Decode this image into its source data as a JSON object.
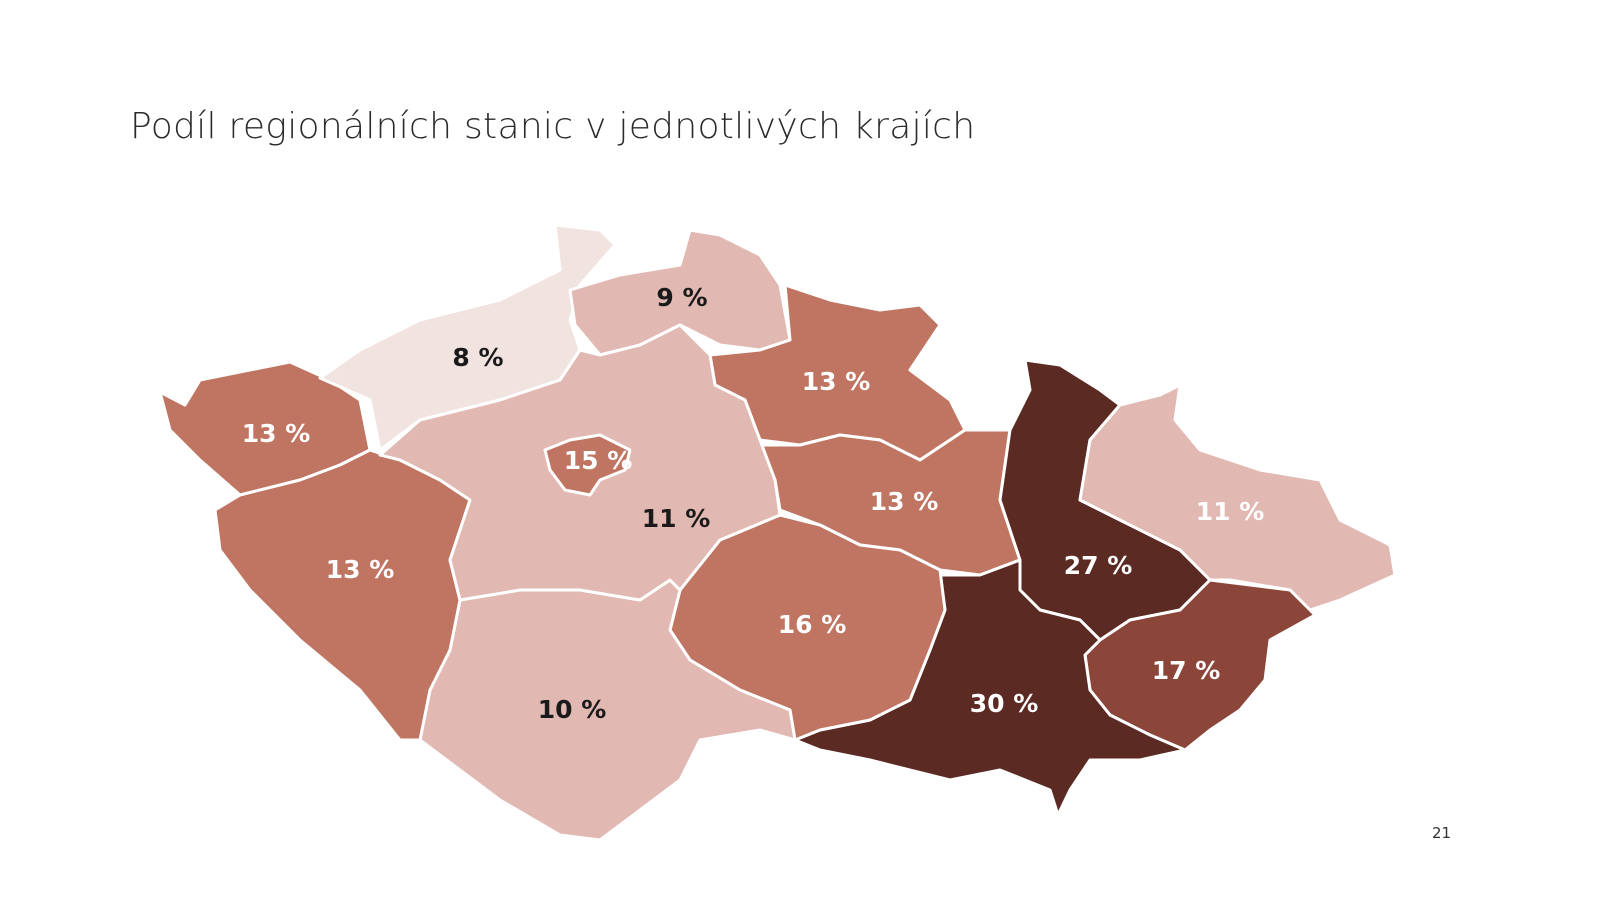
{
  "slide": {
    "title": "Podíl regionálních stanic v jednotlivých krajích",
    "page_number": "21"
  },
  "color_scale": {
    "lightest": "#f1e3e0",
    "light": "#e1b8b2",
    "medium": "#c07563",
    "dark": "#8b4539",
    "darkest": "#5b2a23"
  },
  "chart_data": {
    "type": "choropleth",
    "regions": [
      {
        "value": 13,
        "label": "13 %",
        "color": "#c07563",
        "text_color": "#ffffff"
      },
      {
        "value": 8,
        "label": "8 %",
        "color": "#f1e3e0",
        "text_color": "#1a1a1a"
      },
      {
        "value": 9,
        "label": "9 %",
        "color": "#e1b8b2",
        "text_color": "#1a1a1a"
      },
      {
        "value": 13,
        "label": "13 %",
        "color": "#c07563",
        "text_color": "#ffffff"
      },
      {
        "value": 13,
        "label": "13 %",
        "color": "#c07563",
        "text_color": "#ffffff"
      },
      {
        "value": 27,
        "label": "27 %",
        "color": "#5b2a23",
        "text_color": "#ffffff"
      },
      {
        "value": 11,
        "label": "11 %",
        "color": "#e1b8b2",
        "text_color": "#ffffff"
      },
      {
        "value": 17,
        "label": "17 %",
        "color": "#8b4539",
        "text_color": "#ffffff"
      },
      {
        "value": 30,
        "label": "30 %",
        "color": "#5b2a23",
        "text_color": "#ffffff"
      },
      {
        "value": 16,
        "label": "16 %",
        "color": "#c07563",
        "text_color": "#ffffff"
      },
      {
        "value": 10,
        "label": "10 %",
        "color": "#e1b8b2",
        "text_color": "#1a1a1a"
      },
      {
        "value": 13,
        "label": "13 %",
        "color": "#c07563",
        "text_color": "#ffffff"
      },
      {
        "value": 11,
        "label": "11 %",
        "color": "#e1b8b2",
        "text_color": "#1a1a1a"
      },
      {
        "value": 15,
        "label": "15 %",
        "color": "#c07563",
        "text_color": "#ffffff"
      }
    ]
  }
}
